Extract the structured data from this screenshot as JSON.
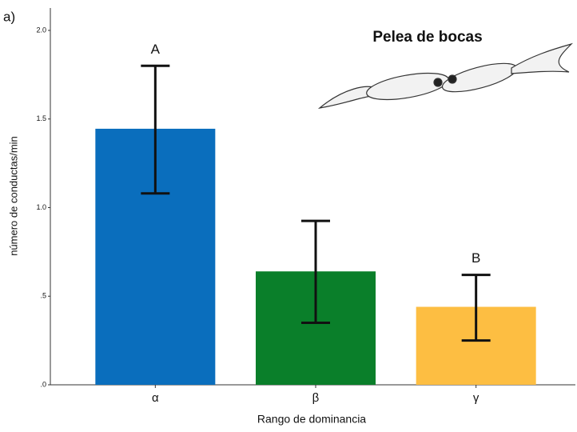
{
  "panel_label": "a)",
  "chart_data": {
    "type": "bar",
    "title": "Pelea de bocas",
    "x_label": "Rango de dominancia",
    "y_label": "número de conductas/min",
    "categories": [
      "α",
      "β",
      "γ"
    ],
    "values": [
      1.445,
      0.64,
      0.44
    ],
    "lower": [
      1.08,
      0.35,
      0.25
    ],
    "upper": [
      1.8,
      0.925,
      0.62
    ],
    "colors": [
      "#0a6ebd",
      "#0a7f2a",
      "#fdbe42"
    ],
    "letters": [
      "A",
      null,
      "B"
    ],
    "ylim": [
      0,
      2.0
    ],
    "yticks": [
      {
        "value": 0,
        "label": ".0"
      },
      {
        "value": 0.5,
        "label": ".5"
      },
      {
        "value": 1.0,
        "label": "1.0"
      },
      {
        "value": 1.5,
        "label": "1.5"
      },
      {
        "value": 2.0,
        "label": "2.0"
      }
    ],
    "grid": false
  }
}
